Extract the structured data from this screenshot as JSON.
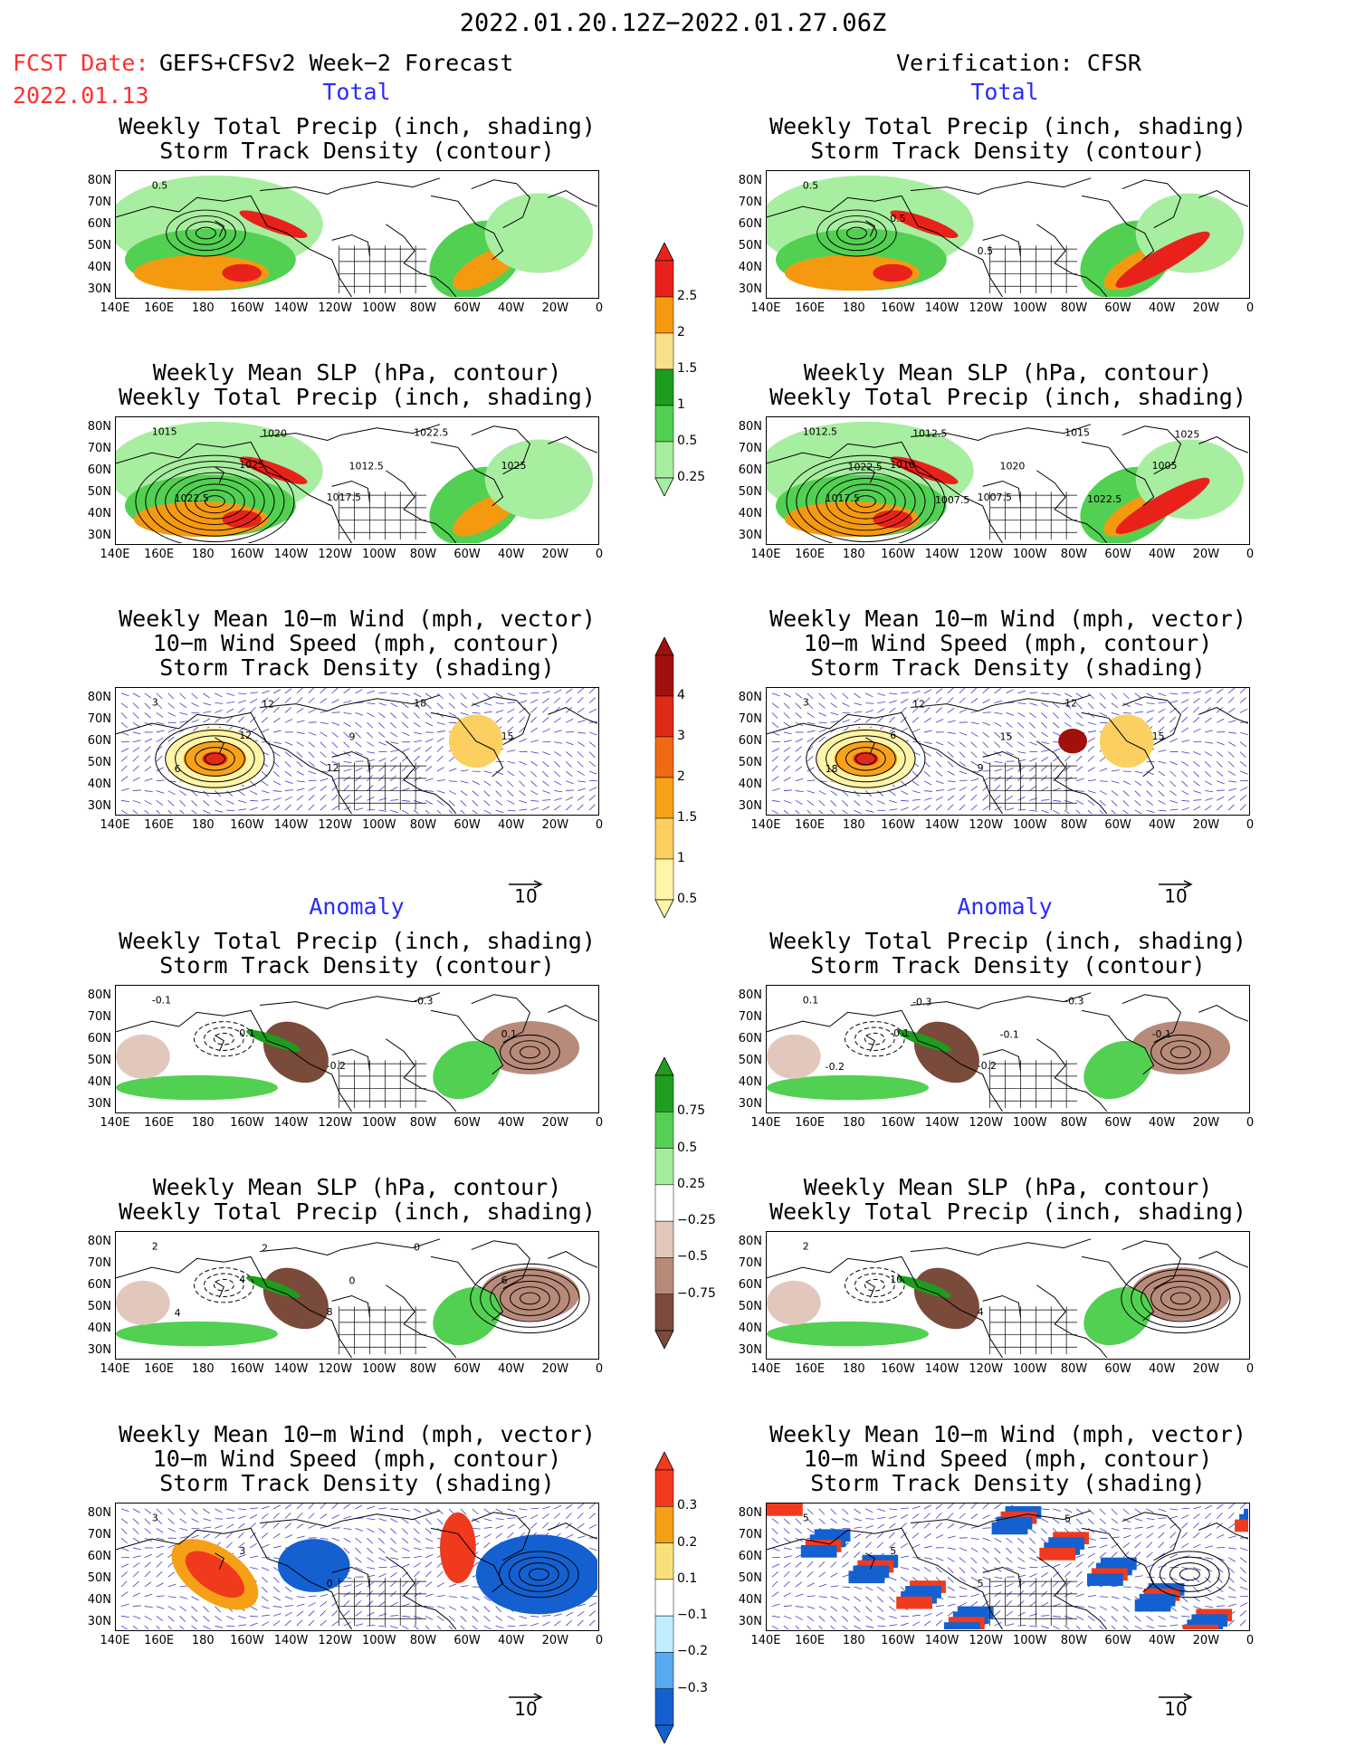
{
  "header": {
    "date_range": "2022.01.20.12Z−2022.01.27.06Z",
    "fcst_label": "FCST Date:",
    "fcst_model": "GEFS+CFSv2 Week−2 Forecast",
    "fcst_date": "2022.01.13",
    "verification": "Verification: CFSR"
  },
  "sections": {
    "total_left": "Total",
    "total_right": "Total",
    "anomaly_left": "Anomaly",
    "anomaly_right": "Anomaly"
  },
  "titles": {
    "precip_track": [
      "Weekly Total Precip (inch, shading)",
      "Storm Track Density (contour)"
    ],
    "slp_precip": [
      "Weekly Mean SLP (hPa, contour)",
      "Weekly Total Precip (inch, shading)"
    ],
    "wind": [
      "Weekly Mean 10−m Wind (mph, vector)",
      "10−m Wind Speed (mph, contour)",
      "Storm Track Density (shading)"
    ]
  },
  "axes": {
    "lat_ticks": [
      "80N",
      "70N",
      "60N",
      "50N",
      "40N",
      "30N"
    ],
    "lon_ticks": [
      "140E",
      "160E",
      "180",
      "160W",
      "140W",
      "120W",
      "100W",
      "80W",
      "60W",
      "40W",
      "20W",
      "0"
    ]
  },
  "vector_reference": "10",
  "colorbars": {
    "total_precip": {
      "labels": [
        "2.5",
        "2",
        "1.5",
        "1",
        "0.5",
        "0.25"
      ],
      "colors": [
        "#e8221a",
        "#f59a10",
        "#fbe08a",
        "#1e9c1e",
        "#52d052",
        "#a8eea0"
      ]
    },
    "total_track": {
      "labels": [
        "4",
        "3",
        "2",
        "1.5",
        "1",
        "0.5"
      ],
      "colors": [
        "#a0100c",
        "#e02a18",
        "#f06a14",
        "#f7a21a",
        "#fbd060",
        "#fff5a8"
      ]
    },
    "anom_precip": {
      "labels": [
        "0.75",
        "0.5",
        "0.25",
        "−0.25",
        "−0.5",
        "−0.75"
      ],
      "colors": [
        "#1f9d1f",
        "#55d055",
        "#a6ec9e",
        "#ffffff",
        "#e2c8bc",
        "#b88a7a",
        "#7a4a3a"
      ]
    },
    "anom_track": {
      "labels": [
        "0.3",
        "0.2",
        "0.1",
        "−0.1",
        "−0.2",
        "−0.3"
      ],
      "colors": [
        "#ef3a1e",
        "#f6a018",
        "#fbe07a",
        "#ffffff",
        "#c0ecff",
        "#58aaf0",
        "#1460d0"
      ]
    },
    "palette": {
      "green_dark": "#1e9c1e",
      "green_mid": "#52d052",
      "green_light": "#a8eea0",
      "orange": "#f59a10",
      "red": "#e8221a",
      "yellow": "#fbe08a",
      "brown_dark": "#7a4a3a",
      "brown_mid": "#b88a7a",
      "brown_light": "#e2c8bc",
      "blue_dark": "#1460d0",
      "blue_mid": "#58aaf0",
      "blue_light": "#c0ecff",
      "vector": "#3a3ac8"
    }
  },
  "panels": [
    {
      "id": "fc-total-precip",
      "title": "precip_track",
      "kind": "total-precip",
      "contour_labels": [
        "0.5"
      ]
    },
    {
      "id": "vf-total-precip",
      "title": "precip_track",
      "kind": "total-precip",
      "contour_labels": [
        "0.5",
        "0.5",
        "0.5"
      ]
    },
    {
      "id": "fc-total-slp",
      "title": "slp_precip",
      "kind": "total-slp",
      "contour_labels": [
        "1015",
        "1025",
        "1017.5",
        "1022.5",
        "1025",
        "1022.5",
        "1020",
        "1012.5"
      ]
    },
    {
      "id": "vf-total-slp",
      "title": "slp_precip",
      "kind": "total-slp",
      "contour_labels": [
        "1012.5",
        "1010",
        "1007.5",
        "1015",
        "1005",
        "1017.5",
        "1012.5",
        "1020",
        "1022.5",
        "1025",
        "1022.5",
        "1007.5"
      ]
    },
    {
      "id": "fc-total-wind",
      "title": "wind",
      "kind": "total-wind",
      "contour_labels": [
        "3",
        "12",
        "12",
        "18",
        "15",
        "6",
        "12",
        "9"
      ]
    },
    {
      "id": "vf-total-wind",
      "title": "wind",
      "kind": "total-wind",
      "contour_labels": [
        "3",
        "6",
        "9",
        "12",
        "15",
        "18",
        "12",
        "15"
      ]
    },
    {
      "id": "fc-anom-precip",
      "title": "precip_track",
      "kind": "anom-precip",
      "contour_labels": [
        "-0.1",
        "0.1",
        "-0.2",
        "-0.3",
        "0.1"
      ]
    },
    {
      "id": "vf-anom-precip",
      "title": "precip_track",
      "kind": "anom-precip",
      "contour_labels": [
        "0.1",
        "-0.1",
        "-0.2",
        "-0.3",
        "-0.1",
        "-0.2",
        "-0.3",
        "-0.1"
      ]
    },
    {
      "id": "fc-anom-slp",
      "title": "slp_precip",
      "kind": "anom-slp",
      "contour_labels": [
        "2",
        "4",
        "8",
        "0",
        "6",
        "4",
        "2",
        "0"
      ]
    },
    {
      "id": "vf-anom-slp",
      "title": "slp_precip",
      "kind": "anom-slp",
      "contour_labels": [
        "2",
        "10",
        "4"
      ]
    },
    {
      "id": "fc-anom-wind",
      "title": "wind",
      "kind": "anom-wind",
      "contour_labels": [
        "3",
        "3",
        "0"
      ]
    },
    {
      "id": "vf-anom-wind",
      "title": "wind",
      "kind": "anom-wind",
      "contour_labels": [
        "5",
        "5",
        "5",
        "5"
      ]
    }
  ]
}
